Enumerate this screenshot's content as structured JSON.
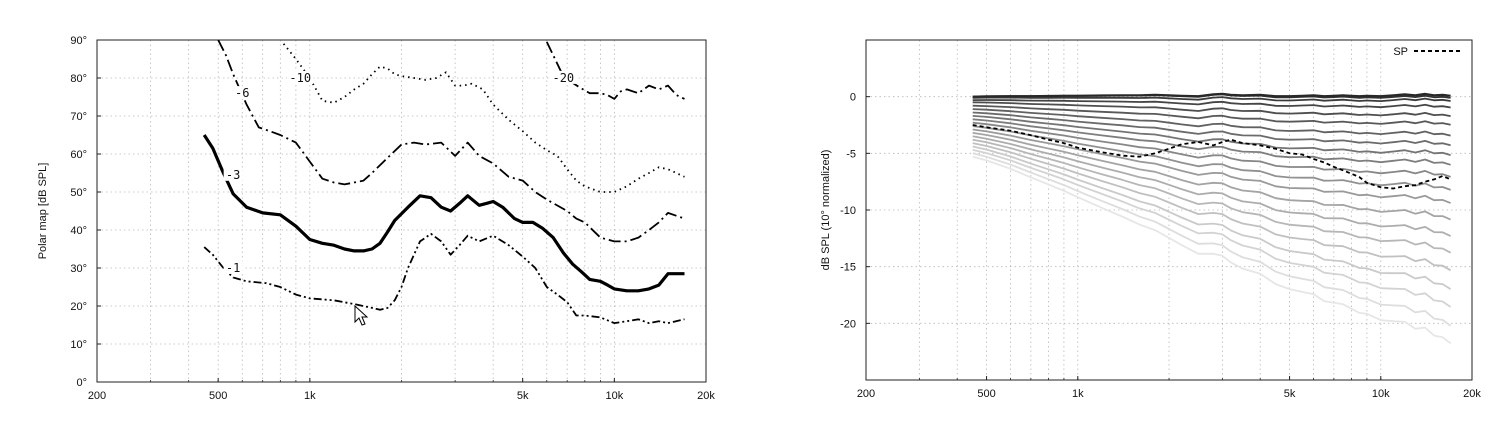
{
  "chart_data": [
    {
      "type": "line",
      "title": "",
      "xlabel": "",
      "ylabel": "Polar map [dB SPL]",
      "xscale": "log",
      "xlim": [
        200,
        20000
      ],
      "ylim": [
        0,
        90
      ],
      "x_ticks": [
        200,
        500,
        1000,
        5000,
        10000,
        20000
      ],
      "x_tick_labels": [
        "200",
        "500",
        "1k",
        "5k",
        "10k",
        "20k"
      ],
      "y_ticks": [
        0,
        10,
        20,
        30,
        40,
        50,
        60,
        70,
        80,
        90
      ],
      "y_tick_labels": [
        "0°",
        "10°",
        "20°",
        "30°",
        "40°",
        "50°",
        "60°",
        "70°",
        "80°",
        "90°"
      ],
      "grid": true,
      "series": [
        {
          "label": "-1",
          "style": "dash-dot-dot",
          "color": "#000000",
          "points": [
            [
              450,
              35.5
            ],
            [
              480,
              33.5
            ],
            [
              520,
              30
            ],
            [
              560,
              27.5
            ],
            [
              620,
              26.5
            ],
            [
              720,
              26
            ],
            [
              800,
              25
            ],
            [
              900,
              23
            ],
            [
              1000,
              22
            ],
            [
              1200,
              21.5
            ],
            [
              1400,
              20.5
            ],
            [
              1600,
              19.5
            ],
            [
              1700,
              19
            ],
            [
              1800,
              19.5
            ],
            [
              1900,
              21.5
            ],
            [
              2000,
              25
            ],
            [
              2100,
              30
            ],
            [
              2300,
              37
            ],
            [
              2500,
              39
            ],
            [
              2700,
              37
            ],
            [
              2900,
              33.5
            ],
            [
              3100,
              36
            ],
            [
              3300,
              38.5
            ],
            [
              3600,
              37
            ],
            [
              4000,
              38.5
            ],
            [
              4500,
              36
            ],
            [
              5000,
              33
            ],
            [
              5500,
              30
            ],
            [
              6000,
              25
            ],
            [
              6500,
              23
            ],
            [
              7000,
              21
            ],
            [
              7500,
              17.5
            ],
            [
              8000,
              17.5
            ],
            [
              9000,
              17
            ],
            [
              10000,
              15.5
            ],
            [
              11000,
              16
            ],
            [
              12000,
              16.5
            ],
            [
              13000,
              15.5
            ],
            [
              14000,
              16
            ],
            [
              15000,
              15.5
            ],
            [
              17000,
              16.5
            ]
          ],
          "label_at": [
            560,
            29.5
          ]
        },
        {
          "label": "-3",
          "style": "solid-thick",
          "color": "#000000",
          "points": [
            [
              450,
              65
            ],
            [
              480,
              61.5
            ],
            [
              520,
              55
            ],
            [
              560,
              49.5
            ],
            [
              620,
              46
            ],
            [
              700,
              44.5
            ],
            [
              800,
              44
            ],
            [
              900,
              41
            ],
            [
              1000,
              37.5
            ],
            [
              1100,
              36.5
            ],
            [
              1200,
              36
            ],
            [
              1300,
              35
            ],
            [
              1400,
              34.5
            ],
            [
              1500,
              34.5
            ],
            [
              1600,
              35
            ],
            [
              1700,
              36.5
            ],
            [
              1800,
              39.5
            ],
            [
              1900,
              42.5
            ],
            [
              2100,
              46
            ],
            [
              2300,
              49
            ],
            [
              2500,
              48.5
            ],
            [
              2700,
              46
            ],
            [
              2900,
              45
            ],
            [
              3100,
              47
            ],
            [
              3300,
              49
            ],
            [
              3600,
              46.5
            ],
            [
              3800,
              47
            ],
            [
              4000,
              47.5
            ],
            [
              4300,
              46
            ],
            [
              4700,
              43
            ],
            [
              5000,
              42
            ],
            [
              5400,
              42
            ],
            [
              5800,
              40.5
            ],
            [
              6300,
              38
            ],
            [
              6800,
              34
            ],
            [
              7300,
              31
            ],
            [
              7800,
              29
            ],
            [
              8300,
              27
            ],
            [
              9000,
              26.5
            ],
            [
              9500,
              25.5
            ],
            [
              10000,
              24.5
            ],
            [
              11000,
              24
            ],
            [
              12000,
              24
            ],
            [
              13000,
              24.5
            ],
            [
              14000,
              25.5
            ],
            [
              15000,
              28.5
            ],
            [
              17000,
              28.5
            ]
          ],
          "label_at": [
            560,
            54
          ]
        },
        {
          "label": "-6",
          "style": "dash-dot",
          "color": "#000000",
          "points": [
            [
              500,
              90
            ],
            [
              530,
              86
            ],
            [
              560,
              81
            ],
            [
              620,
              73
            ],
            [
              680,
              67
            ],
            [
              740,
              66
            ],
            [
              800,
              65
            ],
            [
              900,
              63
            ],
            [
              1000,
              58
            ],
            [
              1100,
              53.5
            ],
            [
              1200,
              52.5
            ],
            [
              1300,
              52
            ],
            [
              1400,
              52.5
            ],
            [
              1500,
              53
            ],
            [
              1600,
              55
            ],
            [
              1800,
              59
            ],
            [
              2000,
              62.5
            ],
            [
              2200,
              63
            ],
            [
              2400,
              62.5
            ],
            [
              2700,
              63
            ],
            [
              3000,
              59.5
            ],
            [
              3300,
              63
            ],
            [
              3600,
              59.5
            ],
            [
              4000,
              57.5
            ],
            [
              4500,
              54
            ],
            [
              5000,
              53
            ],
            [
              5500,
              50
            ],
            [
              6000,
              48
            ],
            [
              7000,
              45
            ],
            [
              7500,
              43
            ],
            [
              8000,
              42
            ],
            [
              9000,
              38
            ],
            [
              10000,
              37
            ],
            [
              11000,
              37
            ],
            [
              12000,
              38
            ],
            [
              13000,
              40
            ],
            [
              14000,
              42
            ],
            [
              15000,
              44.5
            ],
            [
              17000,
              43
            ]
          ],
          "label_at": [
            600,
            75.5
          ]
        },
        {
          "label": "-10",
          "style": "dotted",
          "color": "#000000",
          "points": [
            [
              820,
              89
            ],
            [
              900,
              85
            ],
            [
              1000,
              80
            ],
            [
              1100,
              74
            ],
            [
              1200,
              73.5
            ],
            [
              1300,
              75
            ],
            [
              1400,
              77
            ],
            [
              1500,
              78.5
            ],
            [
              1600,
              81
            ],
            [
              1700,
              83
            ],
            [
              1800,
              82.5
            ],
            [
              1900,
              81
            ],
            [
              2000,
              80.5
            ],
            [
              2200,
              80
            ],
            [
              2400,
              79.5
            ],
            [
              2600,
              80
            ],
            [
              2800,
              81.5
            ],
            [
              3000,
              78
            ],
            [
              3200,
              78
            ],
            [
              3400,
              78.5
            ],
            [
              3700,
              77
            ],
            [
              4000,
              73
            ],
            [
              4500,
              69
            ],
            [
              5000,
              66
            ],
            [
              5500,
              63
            ],
            [
              6000,
              61
            ],
            [
              6500,
              59.5
            ],
            [
              7000,
              56
            ],
            [
              7500,
              53
            ],
            [
              8000,
              51.5
            ],
            [
              9000,
              50
            ],
            [
              10000,
              50
            ],
            [
              11000,
              51.5
            ],
            [
              12000,
              53.5
            ],
            [
              13000,
              55
            ],
            [
              14000,
              56.5
            ],
            [
              15000,
              56
            ],
            [
              17000,
              54
            ]
          ],
          "label_at": [
            930,
            79.5
          ]
        },
        {
          "label": "-20",
          "style": "dash-dot",
          "color": "#000000",
          "points": [
            [
              6000,
              89.5
            ],
            [
              6300,
              86
            ],
            [
              6700,
              81.5
            ],
            [
              7200,
              79
            ],
            [
              7700,
              77.5
            ],
            [
              8300,
              76
            ],
            [
              9000,
              76
            ],
            [
              9500,
              75.5
            ],
            [
              10000,
              74.5
            ],
            [
              10500,
              76.5
            ],
            [
              11000,
              77
            ],
            [
              12000,
              76
            ],
            [
              13000,
              78
            ],
            [
              14000,
              77
            ],
            [
              15000,
              78
            ],
            [
              16000,
              75.5
            ],
            [
              17000,
              74.5
            ]
          ],
          "label_at": [
            6800,
            79.5
          ]
        }
      ]
    },
    {
      "type": "line",
      "title": "",
      "xlabel": "",
      "ylabel": "dB SPL (10° normalized)",
      "xscale": "log",
      "xlim": [
        200,
        20000
      ],
      "ylim": [
        -25,
        5
      ],
      "x_ticks": [
        200,
        500,
        1000,
        5000,
        10000,
        20000
      ],
      "x_tick_labels": [
        "200",
        "500",
        "1k",
        "5k",
        "10k",
        "20k"
      ],
      "y_ticks": [
        0,
        -5,
        -10,
        -15,
        -20
      ],
      "y_tick_labels": [
        "0",
        "-5",
        "-10",
        "-15",
        "-20"
      ],
      "grid": true,
      "legend": {
        "position": "top-right",
        "entries": [
          "SP"
        ]
      },
      "x": [
        450,
        500,
        600,
        700,
        800,
        900,
        1000,
        1200,
        1400,
        1600,
        1800,
        2000,
        2200,
        2500,
        2800,
        3000,
        3200,
        3500,
        4000,
        4500,
        5000,
        5500,
        6000,
        6500,
        7000,
        7500,
        8000,
        8500,
        9000,
        10000,
        11000,
        12000,
        13000,
        14000,
        15000,
        16000,
        17000
      ],
      "family": [
        {
          "offset": 0.0,
          "slope": 0.0,
          "sag": 0.0
        },
        {
          "offset": 0.0,
          "slope": -0.2,
          "sag": 0.0
        },
        {
          "offset": -0.1,
          "slope": -0.4,
          "sag": -0.1
        },
        {
          "offset": -0.3,
          "slope": -0.8,
          "sag": -0.2
        },
        {
          "offset": -0.5,
          "slope": -1.4,
          "sag": -0.4
        },
        {
          "offset": -0.8,
          "slope": -1.9,
          "sag": -0.6
        },
        {
          "offset": -1.1,
          "slope": -2.6,
          "sag": -0.8
        },
        {
          "offset": -1.4,
          "slope": -3.2,
          "sag": -1.0
        },
        {
          "offset": -1.7,
          "slope": -3.8,
          "sag": -1.2
        },
        {
          "offset": -2.0,
          "slope": -4.4,
          "sag": -1.4
        },
        {
          "offset": -2.3,
          "slope": -5.2,
          "sag": -1.6
        },
        {
          "offset": -2.6,
          "slope": -6.1,
          "sag": -1.8
        },
        {
          "offset": -2.9,
          "slope": -7.0,
          "sag": -2.0
        },
        {
          "offset": -3.2,
          "slope": -8.2,
          "sag": -2.2
        },
        {
          "offset": -3.5,
          "slope": -9.4,
          "sag": -2.4
        },
        {
          "offset": -3.8,
          "slope": -10.6,
          "sag": -2.6
        },
        {
          "offset": -4.1,
          "slope": -11.9,
          "sag": -2.8
        },
        {
          "offset": -4.4,
          "slope": -13.3,
          "sag": -3.0
        },
        {
          "offset": -4.7,
          "slope": -14.6,
          "sag": -3.1
        },
        {
          "offset": -5.0,
          "slope": -16.0,
          "sag": -3.3
        },
        {
          "offset": -5.3,
          "slope": -17.3,
          "sag": -3.5
        }
      ],
      "ripple": [
        0.0,
        0.05,
        0.1,
        0.1,
        0.15,
        0.2,
        0.2,
        0.25,
        0.3,
        0.3,
        0.4,
        0.3,
        0.2,
        0.1,
        0.5,
        0.6,
        0.4,
        0.3,
        0.4,
        0.1,
        0.1,
        0.2,
        0.3,
        0.1,
        0.2,
        0.3,
        0.2,
        0.1,
        0.2,
        0.1,
        0.3,
        0.5,
        0.3,
        0.6,
        0.3,
        0.4,
        0.2
      ],
      "sp": {
        "name": "SP",
        "style": "dashed",
        "color": "#000000",
        "values": [
          -2.5,
          -2.7,
          -3.0,
          -3.4,
          -3.8,
          -4.1,
          -4.5,
          -4.9,
          -5.2,
          -5.3,
          -5.0,
          -4.6,
          -4.2,
          -4.0,
          -4.3,
          -4.0,
          -3.8,
          -4.1,
          -4.3,
          -4.6,
          -5.0,
          -5.1,
          -5.5,
          -5.8,
          -6.2,
          -6.5,
          -6.8,
          -7.1,
          -7.6,
          -8.0,
          -8.1,
          -7.9,
          -7.8,
          -7.5,
          -7.3,
          -7.0,
          -7.3
        ]
      }
    }
  ]
}
